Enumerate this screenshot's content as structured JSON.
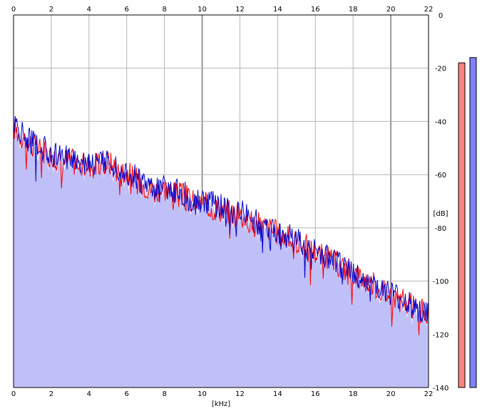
{
  "chart_data": {
    "type": "area",
    "title": "",
    "xlabel": "[kHz]",
    "ylabel": "[dB]",
    "xlim": [
      0,
      22
    ],
    "ylim": [
      -140,
      0
    ],
    "x_ticks": [
      "0",
      "2",
      "4",
      "6",
      "8",
      "10",
      "12",
      "14",
      "16",
      "18",
      "20",
      "22"
    ],
    "y_ticks": [
      "0",
      "-20",
      "-40",
      "-60",
      "-80",
      "-100",
      "-120",
      "-140"
    ],
    "grid": true,
    "series": [
      {
        "color": "#ff0000",
        "x": [
          0,
          0.5,
          1,
          1.5,
          2,
          2.5,
          3,
          3.5,
          4,
          4.5,
          5,
          5.5,
          6,
          6.5,
          7,
          7.5,
          8,
          8.5,
          9,
          9.5,
          10,
          10.5,
          11,
          11.5,
          12,
          12.5,
          13,
          13.5,
          14,
          14.5,
          15,
          15.5,
          16,
          16.5,
          17,
          17.5,
          18,
          18.5,
          19,
          19.5,
          20,
          20.5,
          21,
          21.5,
          22
        ],
        "values": [
          -42,
          -46,
          -49,
          -51,
          -53,
          -55,
          -54,
          -57,
          -56,
          -57,
          -55,
          -58,
          -59,
          -62,
          -64,
          -66,
          -65,
          -67,
          -68,
          -70,
          -71,
          -72,
          -73,
          -74,
          -75,
          -77,
          -79,
          -80,
          -82,
          -84,
          -85,
          -87,
          -89,
          -91,
          -93,
          -95,
          -97,
          -99,
          -101,
          -103,
          -105,
          -107,
          -109,
          -111,
          -112
        ]
      },
      {
        "color": "#0000cc",
        "x": [
          0,
          0.5,
          1,
          1.5,
          2,
          2.5,
          3,
          3.5,
          4,
          4.5,
          5,
          5.5,
          6,
          6.5,
          7,
          7.5,
          8,
          8.5,
          9,
          9.5,
          10,
          10.5,
          11,
          11.5,
          12,
          12.5,
          13,
          13.5,
          14,
          14.5,
          15,
          15.5,
          16,
          16.5,
          17,
          17.5,
          18,
          18.5,
          19,
          19.5,
          20,
          20.5,
          21,
          21.5,
          22
        ],
        "values": [
          -41,
          -45,
          -48,
          -50,
          -52,
          -54,
          -53,
          -55,
          -55,
          -56,
          -54,
          -57,
          -59,
          -61,
          -64,
          -65,
          -64,
          -66,
          -67,
          -69,
          -70,
          -71,
          -72,
          -73,
          -74,
          -76,
          -78,
          -79,
          -81,
          -83,
          -85,
          -87,
          -89,
          -91,
          -93,
          -95,
          -97,
          -99,
          -101,
          -103,
          -105,
          -107,
          -109,
          -111,
          -113
        ]
      }
    ],
    "fill_color": "#c0c0f8",
    "level_meters": [
      {
        "color": "#ff8080",
        "level_db": -18
      },
      {
        "color": "#8080ff",
        "level_db": -16
      }
    ]
  }
}
